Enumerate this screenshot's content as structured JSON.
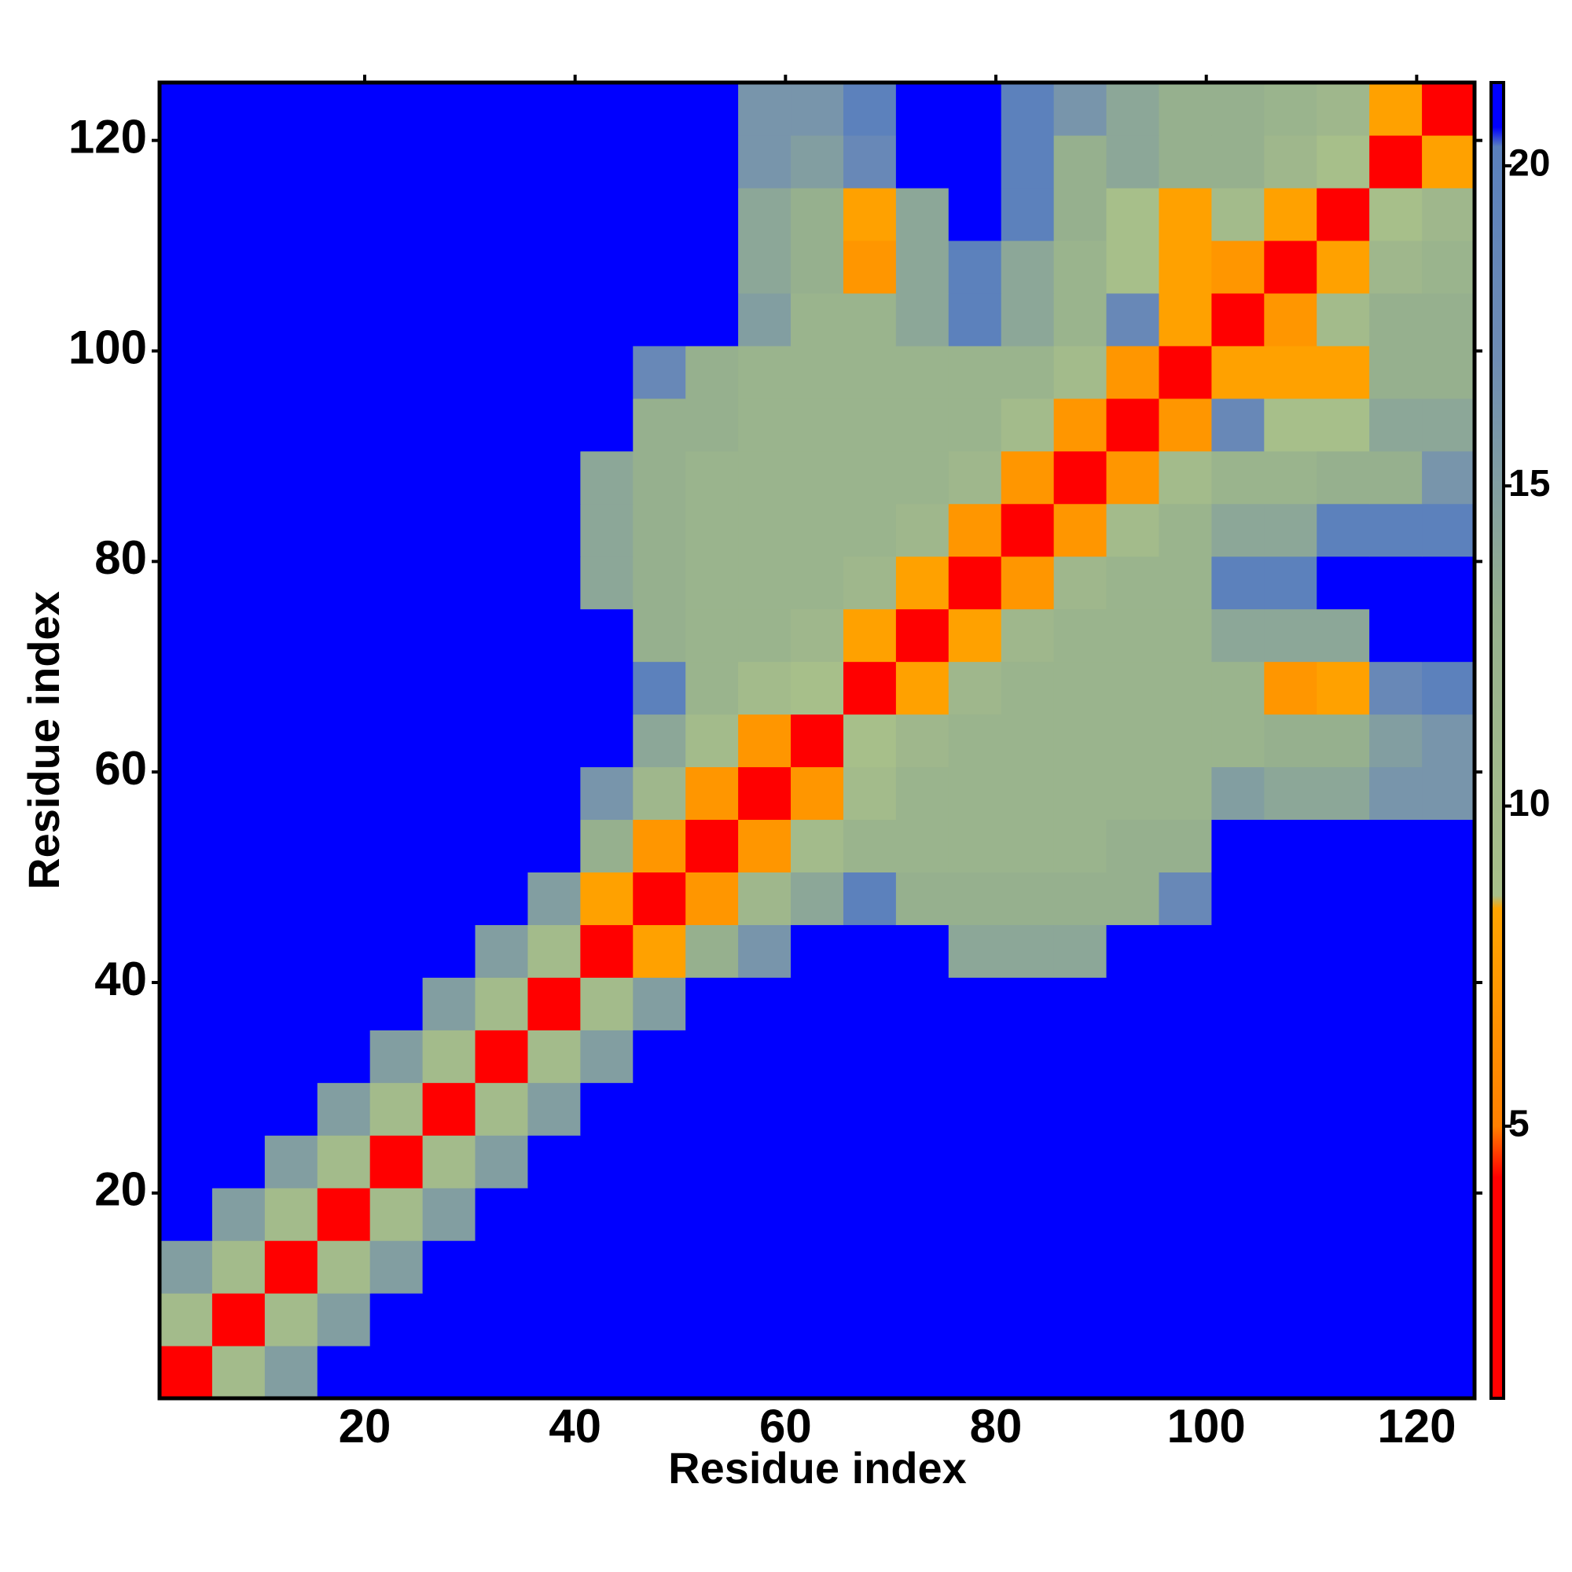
{
  "chart_data": {
    "type": "heatmap",
    "x_label": "Residue index",
    "y_label": "Residue index",
    "x": [
      3,
      8,
      13,
      18,
      23,
      28,
      33,
      38,
      43,
      48,
      53,
      58,
      63,
      68,
      73,
      78,
      83,
      88,
      93,
      98,
      103,
      108,
      113,
      118,
      123
    ],
    "y": [
      3,
      8,
      13,
      18,
      23,
      28,
      33,
      38,
      43,
      48,
      53,
      58,
      63,
      68,
      73,
      78,
      83,
      88,
      93,
      98,
      103,
      108,
      113,
      118,
      123
    ],
    "z": [
      [
        3,
        10,
        15,
        22,
        22,
        22,
        22,
        22,
        22,
        22,
        22,
        22,
        22,
        22,
        22,
        22,
        22,
        22,
        22,
        22,
        22,
        22,
        22,
        22,
        22
      ],
      [
        10,
        3,
        10,
        15,
        22,
        22,
        22,
        22,
        22,
        22,
        22,
        22,
        22,
        22,
        22,
        22,
        22,
        22,
        22,
        22,
        22,
        22,
        22,
        22,
        22
      ],
      [
        15,
        10,
        3,
        10,
        15,
        22,
        22,
        22,
        22,
        22,
        22,
        22,
        22,
        22,
        22,
        22,
        22,
        22,
        22,
        22,
        22,
        22,
        22,
        22,
        22
      ],
      [
        22,
        15,
        10,
        3,
        10,
        15,
        22,
        22,
        22,
        22,
        22,
        22,
        22,
        22,
        22,
        22,
        22,
        22,
        22,
        22,
        22,
        22,
        22,
        22,
        22
      ],
      [
        22,
        22,
        15,
        10,
        3,
        10,
        15,
        22,
        22,
        22,
        22,
        22,
        22,
        22,
        22,
        22,
        22,
        22,
        22,
        22,
        22,
        22,
        22,
        22,
        22
      ],
      [
        22,
        22,
        22,
        15,
        10,
        3,
        10,
        15,
        22,
        22,
        22,
        22,
        22,
        22,
        22,
        22,
        22,
        22,
        22,
        22,
        22,
        22,
        22,
        22,
        22
      ],
      [
        22,
        22,
        22,
        22,
        15,
        10,
        3,
        10,
        15,
        22,
        22,
        22,
        22,
        22,
        22,
        22,
        22,
        22,
        22,
        22,
        22,
        22,
        22,
        22,
        22
      ],
      [
        22,
        22,
        22,
        22,
        22,
        15,
        10,
        3,
        10,
        15,
        22,
        22,
        22,
        22,
        22,
        22,
        22,
        22,
        22,
        22,
        22,
        22,
        22,
        22,
        22
      ],
      [
        22,
        22,
        22,
        22,
        22,
        22,
        15,
        10,
        3,
        8,
        13,
        16,
        22,
        22,
        22,
        14,
        14,
        14,
        22,
        22,
        22,
        22,
        22,
        22,
        22
      ],
      [
        22,
        22,
        22,
        22,
        22,
        22,
        22,
        15,
        8,
        3,
        7,
        11,
        14,
        20,
        13,
        13,
        13,
        13,
        13,
        18,
        22,
        22,
        22,
        22,
        22
      ],
      [
        22,
        22,
        22,
        22,
        22,
        22,
        22,
        22,
        13,
        7,
        3,
        7,
        10,
        12,
        12,
        12,
        12,
        12,
        13,
        13,
        22,
        22,
        22,
        22,
        22
      ],
      [
        22,
        22,
        22,
        22,
        22,
        22,
        22,
        22,
        16,
        11,
        7,
        3,
        7,
        10,
        12,
        12,
        12,
        12,
        12,
        12,
        15,
        14,
        14,
        16,
        16
      ],
      [
        22,
        22,
        22,
        22,
        22,
        22,
        22,
        22,
        22,
        14,
        10,
        7,
        3,
        9,
        11,
        12,
        12,
        12,
        12,
        12,
        12,
        13,
        13,
        15,
        16
      ],
      [
        22,
        22,
        22,
        22,
        22,
        22,
        22,
        22,
        22,
        20,
        12,
        10,
        9,
        3,
        8,
        11,
        12,
        12,
        12,
        12,
        12,
        7,
        8,
        18,
        20
      ],
      [
        22,
        22,
        22,
        22,
        22,
        22,
        22,
        22,
        22,
        13,
        12,
        12,
        11,
        8,
        3,
        8,
        11,
        12,
        12,
        12,
        14,
        14,
        14,
        22,
        22
      ],
      [
        22,
        22,
        22,
        22,
        22,
        22,
        22,
        22,
        14,
        13,
        12,
        12,
        12,
        11,
        8,
        3,
        7,
        11,
        12,
        12,
        20,
        20,
        22,
        22,
        22
      ],
      [
        22,
        22,
        22,
        22,
        22,
        22,
        22,
        22,
        14,
        13,
        12,
        12,
        12,
        12,
        11,
        7,
        3,
        7,
        10,
        12,
        14,
        14,
        20,
        20,
        20
      ],
      [
        22,
        22,
        22,
        22,
        22,
        22,
        22,
        22,
        14,
        13,
        12,
        12,
        12,
        12,
        12,
        11,
        7,
        3,
        7,
        10,
        12,
        12,
        13,
        13,
        16
      ],
      [
        22,
        22,
        22,
        22,
        22,
        22,
        22,
        22,
        22,
        13,
        13,
        12,
        12,
        12,
        12,
        12,
        10,
        7,
        3,
        7,
        18,
        9,
        9,
        14,
        14
      ],
      [
        22,
        22,
        22,
        22,
        22,
        22,
        22,
        22,
        22,
        18,
        13,
        12,
        12,
        12,
        12,
        12,
        12,
        10,
        7,
        3,
        8,
        8,
        8,
        13,
        13
      ],
      [
        22,
        22,
        22,
        22,
        22,
        22,
        22,
        22,
        22,
        22,
        22,
        15,
        12,
        12,
        14,
        20,
        14,
        12,
        18,
        8,
        3,
        7,
        10,
        13,
        13
      ],
      [
        22,
        22,
        22,
        22,
        22,
        22,
        22,
        22,
        22,
        22,
        22,
        14,
        13,
        7,
        14,
        20,
        14,
        12,
        9,
        8,
        7,
        3,
        8,
        11,
        12
      ],
      [
        22,
        22,
        22,
        22,
        22,
        22,
        22,
        22,
        22,
        22,
        22,
        14,
        13,
        8,
        14,
        22,
        20,
        13,
        9,
        8,
        10,
        8,
        3,
        9,
        11
      ],
      [
        22,
        22,
        22,
        22,
        22,
        22,
        22,
        22,
        22,
        22,
        22,
        16,
        15,
        18,
        22,
        22,
        20,
        13,
        14,
        13,
        13,
        11,
        9,
        3,
        8
      ],
      [
        22,
        22,
        22,
        22,
        22,
        22,
        22,
        22,
        22,
        22,
        22,
        16,
        16,
        20,
        22,
        22,
        20,
        16,
        14,
        13,
        13,
        12,
        11,
        8,
        3
      ]
    ],
    "xlim": [
      0.5,
      125.5
    ],
    "ylim": [
      0.5,
      125.5
    ],
    "xticks": [
      20,
      40,
      60,
      80,
      100,
      120
    ],
    "yticks": [
      20,
      40,
      60,
      80,
      100,
      120
    ],
    "zlim": [
      0.75,
      21.3
    ],
    "zticks": [
      5,
      10,
      15,
      20
    ],
    "colorscale": [
      [
        0.75,
        "#ff0000"
      ],
      [
        4.2,
        "#ff0000"
      ],
      [
        5,
        "#ff8000"
      ],
      [
        8.4,
        "#ffa500"
      ],
      [
        8.6,
        "#a9c08a"
      ],
      [
        13,
        "#96b08e"
      ],
      [
        17,
        "#6e8cb4"
      ],
      [
        20.3,
        "#5a80bd"
      ],
      [
        20.6,
        "#0000ff"
      ],
      [
        21.3,
        "#0000ff"
      ]
    ]
  }
}
